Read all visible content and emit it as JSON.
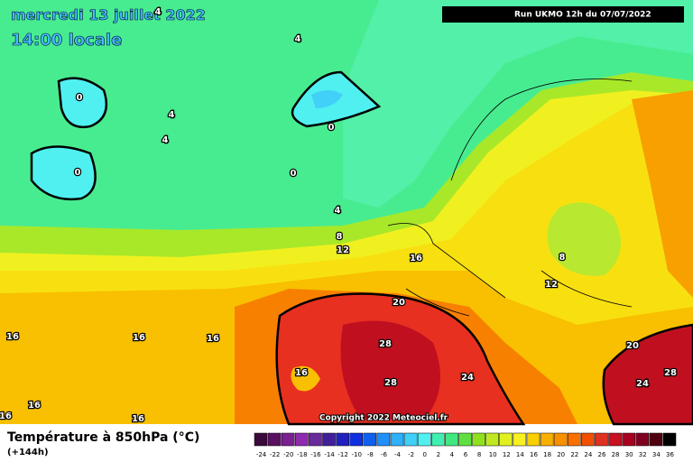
{
  "header": {
    "date": "mercredi 13 juillet 2022",
    "time": "14:00 locale",
    "run": "Run UKMO 12h du 07/07/2022"
  },
  "copyright": "Copyright 2022 Meteociel.fr",
  "footer": {
    "title": "Température à 850hPa (°C)",
    "lead": "(+144h)"
  },
  "contour_labels": [
    4,
    4,
    0,
    4,
    4,
    0,
    0,
    0,
    4,
    8,
    12,
    16,
    20,
    16,
    16,
    16,
    16,
    16,
    16,
    16,
    28,
    28,
    24,
    8,
    12,
    20,
    28,
    24
  ],
  "scale": {
    "ticks": [
      -24,
      -22,
      -20,
      -18,
      -16,
      -14,
      -12,
      -10,
      -8,
      -6,
      -4,
      -2,
      0,
      2,
      4,
      6,
      8,
      10,
      12,
      14,
      16,
      18,
      20,
      22,
      24,
      26,
      28,
      30,
      32,
      34,
      36
    ],
    "colors": [
      "#3a0a3a",
      "#5a1060",
      "#7a2090",
      "#902ab0",
      "#6a2a9a",
      "#40209a",
      "#2020c0",
      "#1030e0",
      "#1060f0",
      "#2090f8",
      "#30b0f8",
      "#40d0f8",
      "#50f0f0",
      "#40f0b0",
      "#40e880",
      "#60e040",
      "#90e020",
      "#c0e820",
      "#e0f020",
      "#f8f020",
      "#f8d000",
      "#f8b000",
      "#f89000",
      "#f87000",
      "#f05000",
      "#e03020",
      "#c81020",
      "#a80020",
      "#800020",
      "#500010",
      "#000000"
    ]
  }
}
